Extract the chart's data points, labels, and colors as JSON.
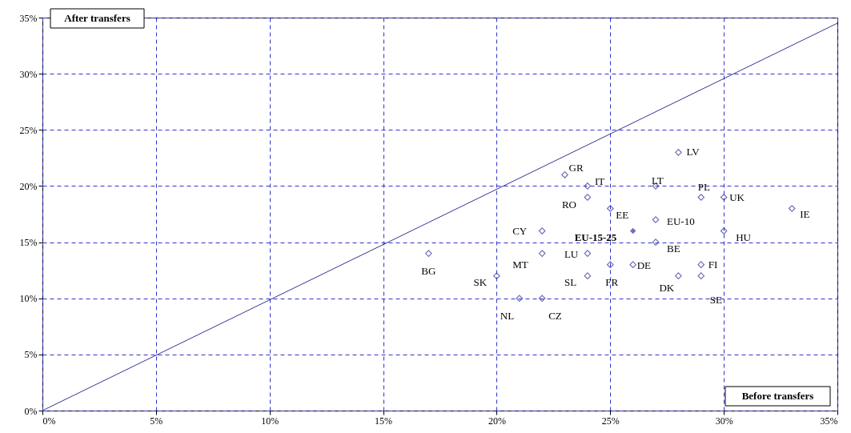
{
  "chart_data": {
    "type": "scatter",
    "xlabel": "Before transfers",
    "ylabel": "After transfers",
    "xlim": [
      0,
      35
    ],
    "ylim": [
      0,
      35
    ],
    "xticks": [
      {
        "value": 0,
        "label": "0%"
      },
      {
        "value": 5,
        "label": "5%"
      },
      {
        "value": 10,
        "label": "10%"
      },
      {
        "value": 15,
        "label": "15%"
      },
      {
        "value": 20,
        "label": "20%"
      },
      {
        "value": 25,
        "label": "25%"
      },
      {
        "value": 30,
        "label": "30%"
      },
      {
        "value": 35,
        "label": "35%"
      }
    ],
    "yticks": [
      {
        "value": 0,
        "label": "0%"
      },
      {
        "value": 5,
        "label": "5%"
      },
      {
        "value": 10,
        "label": "10%"
      },
      {
        "value": 15,
        "label": "15%"
      },
      {
        "value": 20,
        "label": "20%"
      },
      {
        "value": 25,
        "label": "25%"
      },
      {
        "value": 30,
        "label": "30%"
      },
      {
        "value": 35,
        "label": "35%"
      }
    ],
    "grid": true,
    "marker": "diamond",
    "series": [
      {
        "color": "#333399",
        "x": [
          23,
          24,
          28,
          27,
          29,
          30,
          24,
          25,
          33,
          27,
          22,
          30,
          17,
          22,
          24,
          27,
          25,
          26,
          29,
          20,
          24,
          28,
          29,
          21,
          22
        ],
        "values": [
          21,
          20,
          23,
          20,
          19,
          19,
          19,
          18,
          18,
          17,
          16,
          16,
          14,
          14,
          14,
          15,
          13,
          13,
          13,
          12,
          12,
          12,
          12,
          10,
          10
        ],
        "value_labels": [
          "GR",
          "IT",
          "LV",
          "LT",
          "PL",
          "UK",
          "RO",
          "EE",
          "IE",
          "EU-10",
          "CY",
          "HU",
          "BG",
          "MT",
          "LU",
          "BE",
          "FR",
          "DE",
          "FI",
          "SK",
          "SL",
          "DK",
          "SE",
          "NL",
          "CZ"
        ]
      },
      {
        "color": "#333399",
        "x": [
          26
        ],
        "values": [
          16
        ],
        "value_labels": [
          "EU-15-25"
        ]
      },
      {
        "type": "line",
        "marker": "none",
        "color": "#333399",
        "x": [
          0,
          35
        ],
        "values": [
          0,
          34.5
        ]
      }
    ]
  }
}
